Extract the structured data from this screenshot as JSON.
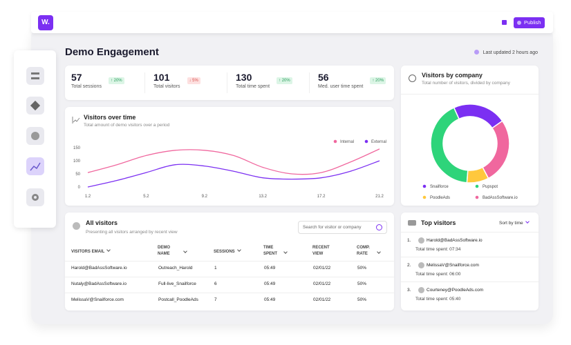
{
  "header": {
    "logo": "W.",
    "publish": "Publish"
  },
  "page": {
    "title": "Demo Engagement",
    "last_updated": "Last updated 2 hours ago"
  },
  "stats": [
    {
      "value": 57,
      "label": "Total sessions",
      "change": "↑ 20%",
      "trend": "up"
    },
    {
      "value": 101,
      "label": "Total visitors",
      "change": "↓ 5%",
      "trend": "down"
    },
    {
      "value": 130,
      "label": "Total time spent",
      "change": "↑ 20%",
      "trend": "up"
    },
    {
      "value": 56,
      "label": "Med. user time spent",
      "change": "↑ 20%",
      "trend": "up"
    }
  ],
  "chart_data": [
    {
      "type": "line",
      "title": "Visitors over time",
      "subtitle": "Total amount of demo visitors over a period",
      "categories": [
        "1.2",
        null,
        "5.2",
        null,
        "9.2",
        null,
        "13.2",
        null,
        "17.2",
        null,
        "21.2"
      ],
      "series": [
        {
          "name": "Internal",
          "color": "#f0679e",
          "values": [
            55,
            85,
            120,
            140,
            140,
            120,
            75,
            50,
            55,
            95,
            145
          ]
        },
        {
          "name": "External",
          "color": "#7b2ff2",
          "values": [
            0,
            25,
            55,
            85,
            80,
            60,
            35,
            30,
            35,
            60,
            100
          ]
        }
      ],
      "ylim": [
        0,
        150
      ],
      "yticks": [
        0,
        50,
        100,
        150
      ],
      "legend": "top-right",
      "grid": false
    },
    {
      "type": "pie",
      "donut": true,
      "title": "Visitors by company",
      "subtitle": "Total number of visitors, divided by company",
      "categories": [
        "Snailforce",
        "Pupspot",
        "PoodleAds",
        "BadAssSoftware.io"
      ],
      "values": [
        22,
        42,
        9,
        27
      ],
      "colors": [
        "#7b2ff2",
        "#2ed47a",
        "#ffc83d",
        "#f0679e"
      ],
      "legend": "bottom"
    }
  ],
  "visitors_table": {
    "title": "All visitors",
    "subtitle": "Presenting all visitors arranged by recent view",
    "search_placeholder": "Search for visitor or company",
    "columns": [
      "VISITORS EMAIL",
      "DEMO NAME",
      "SESSIONS",
      "TIME SPENT",
      "RECENT VIEW",
      "COMP. RATE"
    ],
    "rows": [
      [
        "Harold@BadAssSoftware.io",
        "Outreach_Harold",
        "1",
        "05:49",
        "02/01/22",
        "50%"
      ],
      [
        "Nutaly@BadAssSoftware.io",
        "Full-live_Snailforce",
        "6",
        "05:49",
        "02/01/22",
        "50%"
      ],
      [
        "MelissaV@Snailforce.com",
        "Postcall_PoodleAds",
        "7",
        "05:49",
        "02/01/22",
        "50%"
      ]
    ]
  },
  "top_visitors": {
    "title": "Top visitors",
    "sort": "Sort by time",
    "items": [
      {
        "rank": "1.",
        "email": "Harold@BadAssSoftware.io",
        "detail": "Total time spent: 07:34"
      },
      {
        "rank": "2.",
        "email": "MelissaV@Snailforce.com",
        "detail": "Total time spent: 06:00"
      },
      {
        "rank": "3.",
        "email": "Courteney@PoodleAds.com",
        "detail": "Total time spent: 05:40"
      }
    ]
  }
}
